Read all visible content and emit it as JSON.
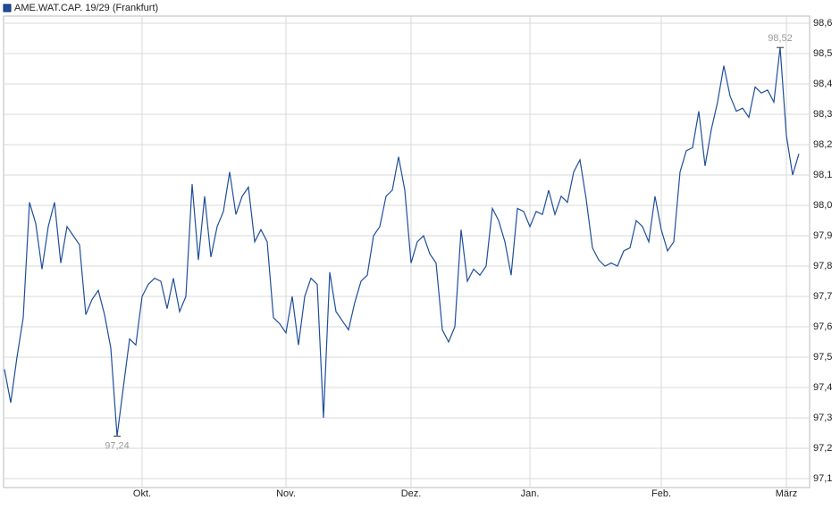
{
  "chart_data": {
    "type": "line",
    "series": [
      {
        "name": "AME.WAT.CAP. 19/29 (Frankfurt)",
        "color": "#1f4e9c",
        "values": [
          97.46,
          97.35,
          97.5,
          97.63,
          98.01,
          97.94,
          97.79,
          97.93,
          98.01,
          97.81,
          97.93,
          97.9,
          97.87,
          97.64,
          97.69,
          97.72,
          97.64,
          97.53,
          97.24,
          97.4,
          97.56,
          97.54,
          97.7,
          97.74,
          97.76,
          97.75,
          97.66,
          97.76,
          97.65,
          97.7,
          98.07,
          97.82,
          98.03,
          97.83,
          97.93,
          97.98,
          98.11,
          97.97,
          98.03,
          98.06,
          97.88,
          97.92,
          97.88,
          97.63,
          97.61,
          97.58,
          97.7,
          97.54,
          97.7,
          97.76,
          97.74,
          97.3,
          97.78,
          97.65,
          97.62,
          97.59,
          97.68,
          97.75,
          97.77,
          97.9,
          97.93,
          98.03,
          98.05,
          98.16,
          98.05,
          97.81,
          97.88,
          97.9,
          97.84,
          97.81,
          97.59,
          97.55,
          97.6,
          97.92,
          97.75,
          97.79,
          97.77,
          97.8,
          97.99,
          97.95,
          97.88,
          97.77,
          97.99,
          97.98,
          97.93,
          97.98,
          97.97,
          98.05,
          97.97,
          98.03,
          98.01,
          98.11,
          98.15,
          98.02,
          97.86,
          97.82,
          97.8,
          97.81,
          97.8,
          97.85,
          97.86,
          97.95,
          97.93,
          97.88,
          98.03,
          97.92,
          97.85,
          97.88,
          98.11,
          98.18,
          98.19,
          98.31,
          98.13,
          98.25,
          98.34,
          98.46,
          98.36,
          98.31,
          98.32,
          98.29,
          98.39,
          98.37,
          98.38,
          98.34,
          98.52,
          98.23,
          98.1,
          98.17
        ]
      }
    ],
    "annotations": [
      {
        "value": 97.24,
        "label": "97,24"
      },
      {
        "value": 98.52,
        "label": "98,52"
      }
    ],
    "xlim": [
      0,
      127
    ],
    "xticks": [
      {
        "value": 22,
        "label": "Okt."
      },
      {
        "value": 45,
        "label": "Nov."
      },
      {
        "value": 65,
        "label": "Dez."
      },
      {
        "value": 84,
        "label": "Jan."
      },
      {
        "value": 105,
        "label": "Feb."
      },
      {
        "value": 125,
        "label": "März"
      }
    ],
    "ylim": [
      97.1,
      98.6
    ],
    "yticks": [
      {
        "value": 97.1,
        "label": "97,1"
      },
      {
        "value": 97.2,
        "label": "97,2"
      },
      {
        "value": 97.3,
        "label": "97,3"
      },
      {
        "value": 97.4,
        "label": "97,4"
      },
      {
        "value": 97.5,
        "label": "97,5"
      },
      {
        "value": 97.6,
        "label": "97,6"
      },
      {
        "value": 97.7,
        "label": "97,7"
      },
      {
        "value": 97.8,
        "label": "97,8"
      },
      {
        "value": 97.9,
        "label": "97,9"
      },
      {
        "value": 98.0,
        "label": "98,0"
      },
      {
        "value": 98.1,
        "label": "98,1"
      },
      {
        "value": 98.2,
        "label": "98,2"
      },
      {
        "value": 98.3,
        "label": "98,3"
      },
      {
        "value": 98.4,
        "label": "98,4"
      },
      {
        "value": 98.5,
        "label": "98,5"
      },
      {
        "value": 98.6,
        "label": "98,6"
      }
    ],
    "grid": true
  }
}
